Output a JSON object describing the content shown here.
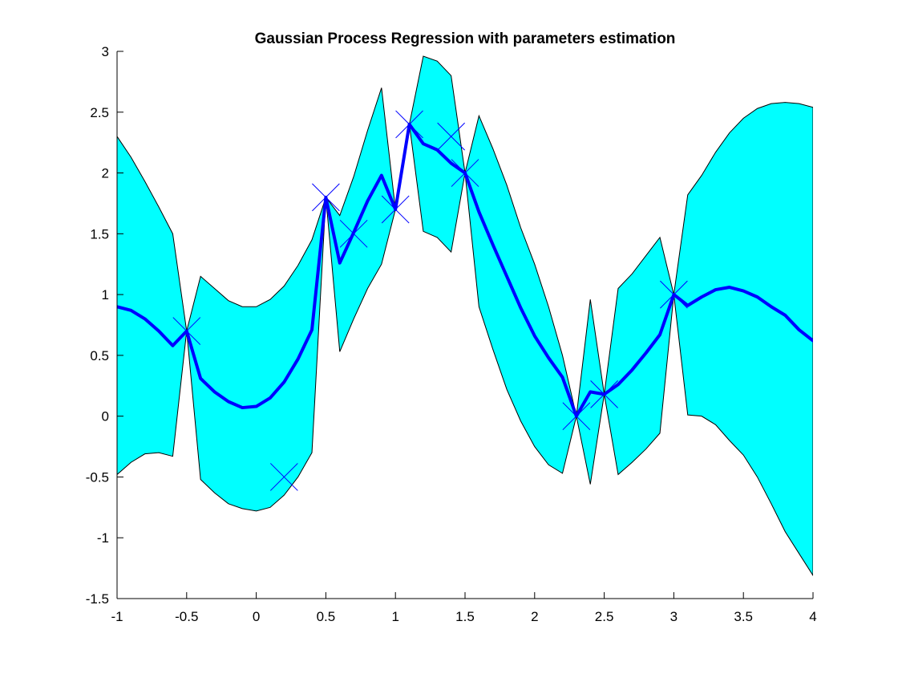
{
  "chart_data": {
    "type": "line",
    "title": "Gaussian Process Regression with parameters estimation",
    "xlabel": "",
    "ylabel": "",
    "xlim": [
      -1,
      4
    ],
    "ylim": [
      -1.5,
      3
    ],
    "xticks": [
      -1,
      -0.5,
      0,
      0.5,
      1,
      1.5,
      2,
      2.5,
      3,
      3.5,
      4
    ],
    "yticks": [
      -1.5,
      -1,
      -0.5,
      0,
      0.5,
      1,
      1.5,
      2,
      2.5,
      3
    ],
    "xtick_labels": [
      "-1",
      "-0.5",
      "0",
      "0.5",
      "1",
      "1.5",
      "2",
      "2.5",
      "3",
      "3.5",
      "4"
    ],
    "ytick_labels": [
      "-1.5",
      "-1",
      "-0.5",
      "0",
      "0.5",
      "1",
      "1.5",
      "2",
      "2.5",
      "3"
    ],
    "grid": false,
    "legend": "none",
    "series": [
      {
        "role": "confidence-band",
        "x": [
          -1,
          -0.9,
          -0.8,
          -0.7,
          -0.6,
          -0.5,
          -0.4,
          -0.3,
          -0.2,
          -0.1,
          0,
          0.1,
          0.2,
          0.3,
          0.4,
          0.5,
          0.6,
          0.7,
          0.8,
          0.9,
          1,
          1.1,
          1.2,
          1.3,
          1.4,
          1.5,
          1.6,
          1.7,
          1.8,
          1.9,
          2,
          2.1,
          2.2,
          2.3,
          2.4,
          2.5,
          2.6,
          2.7,
          2.8,
          2.9,
          3,
          3.1,
          3.2,
          3.3,
          3.4,
          3.5,
          3.6,
          3.7,
          3.8,
          3.9,
          4
        ],
        "upper": [
          2.3,
          2.13,
          1.93,
          1.72,
          1.5,
          0.7,
          1.15,
          1.05,
          0.95,
          0.9,
          0.9,
          0.96,
          1.07,
          1.24,
          1.45,
          1.8,
          1.65,
          1.97,
          2.35,
          2.7,
          1.7,
          2.4,
          2.96,
          2.92,
          2.8,
          2.0,
          2.47,
          2.2,
          1.9,
          1.55,
          1.25,
          0.9,
          0.5,
          0.0,
          0.96,
          0.18,
          1.05,
          1.17,
          1.32,
          1.47,
          1.0,
          1.82,
          1.98,
          2.17,
          2.33,
          2.45,
          2.53,
          2.57,
          2.58,
          2.57,
          2.54
        ],
        "lower": [
          -0.48,
          -0.38,
          -0.31,
          -0.3,
          -0.33,
          0.7,
          -0.52,
          -0.63,
          -0.72,
          -0.76,
          -0.78,
          -0.75,
          -0.65,
          -0.5,
          -0.3,
          1.8,
          0.53,
          0.8,
          1.05,
          1.25,
          1.7,
          2.4,
          1.52,
          1.47,
          1.35,
          2.0,
          0.9,
          0.55,
          0.22,
          -0.04,
          -0.25,
          -0.4,
          -0.47,
          0.0,
          -0.56,
          0.18,
          -0.48,
          -0.38,
          -0.27,
          -0.14,
          1.0,
          0.01,
          0.0,
          -0.07,
          -0.2,
          -0.32,
          -0.5,
          -0.72,
          -0.95,
          -1.13,
          -1.31
        ],
        "color": "#00FFFF"
      },
      {
        "role": "predicted-mean",
        "x": [
          -1,
          -0.9,
          -0.8,
          -0.7,
          -0.6,
          -0.5,
          -0.4,
          -0.3,
          -0.2,
          -0.1,
          0,
          0.1,
          0.2,
          0.3,
          0.4,
          0.5,
          0.6,
          0.7,
          0.8,
          0.9,
          1,
          1.1,
          1.2,
          1.3,
          1.4,
          1.5,
          1.6,
          1.7,
          1.8,
          1.9,
          2,
          2.1,
          2.2,
          2.3,
          2.4,
          2.5,
          2.6,
          2.7,
          2.8,
          2.9,
          3,
          3.1,
          3.2,
          3.3,
          3.4,
          3.5,
          3.6,
          3.7,
          3.8,
          3.9,
          4
        ],
        "y": [
          0.9,
          0.87,
          0.8,
          0.7,
          0.58,
          0.7,
          0.31,
          0.2,
          0.12,
          0.07,
          0.08,
          0.15,
          0.28,
          0.47,
          0.71,
          1.8,
          1.26,
          1.51,
          1.77,
          1.98,
          1.7,
          2.4,
          2.24,
          2.19,
          2.08,
          2.0,
          1.68,
          1.41,
          1.15,
          0.89,
          0.66,
          0.48,
          0.32,
          0.0,
          0.2,
          0.18,
          0.26,
          0.38,
          0.52,
          0.67,
          1.0,
          0.91,
          0.98,
          1.04,
          1.06,
          1.03,
          0.98,
          0.9,
          0.83,
          0.71,
          0.62
        ],
        "color": "#0000FF"
      },
      {
        "role": "observations",
        "x": [
          -0.5,
          0.2,
          0.5,
          0.7,
          1.0,
          1.1,
          1.4,
          1.5,
          2.3,
          2.5,
          3.0
        ],
        "y": [
          0.7,
          -0.5,
          1.8,
          1.5,
          1.7,
          2.4,
          2.3,
          2.0,
          0.0,
          0.18,
          1.0
        ],
        "marker": "x",
        "color": "#0000FF"
      }
    ]
  }
}
